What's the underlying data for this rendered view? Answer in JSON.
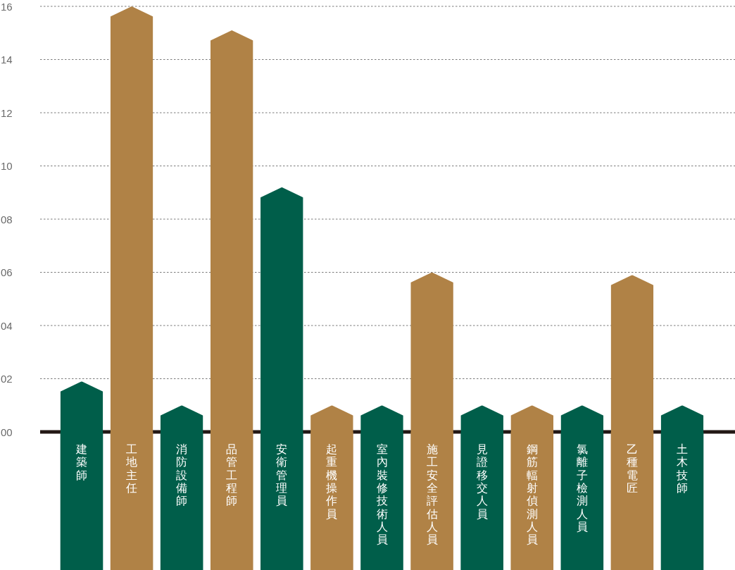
{
  "chart_data": {
    "type": "bar",
    "categories": [
      "建築師",
      "工地主任",
      "消防設備師",
      "品管工程師",
      "安衛管理員",
      "起重機操作員",
      "室內裝修技術人員",
      "施工安全評估人員",
      "見證移交人員",
      "鋼筋輻射偵測人員",
      "氯離子檢測人員",
      "乙種電匠",
      "土木技師"
    ],
    "values": [
      1.9,
      16,
      1,
      15.1,
      9.2,
      1,
      1,
      6,
      1,
      1,
      1,
      5.9,
      1
    ],
    "colors": [
      "#005e4a",
      "#b08246",
      "#005e4a",
      "#b08246",
      "#005e4a",
      "#b08246",
      "#005e4a",
      "#b08246",
      "#005e4a",
      "#b08246",
      "#005e4a",
      "#b08246",
      "#005e4a"
    ],
    "ylim": [
      0,
      16
    ],
    "yticks": [
      {
        "value": 0,
        "label": "00"
      },
      {
        "value": 2,
        "label": "02"
      },
      {
        "value": 4,
        "label": "04"
      },
      {
        "value": 6,
        "label": "06"
      },
      {
        "value": 8,
        "label": "08"
      },
      10,
      12,
      14,
      16
    ],
    "grid": "y"
  }
}
